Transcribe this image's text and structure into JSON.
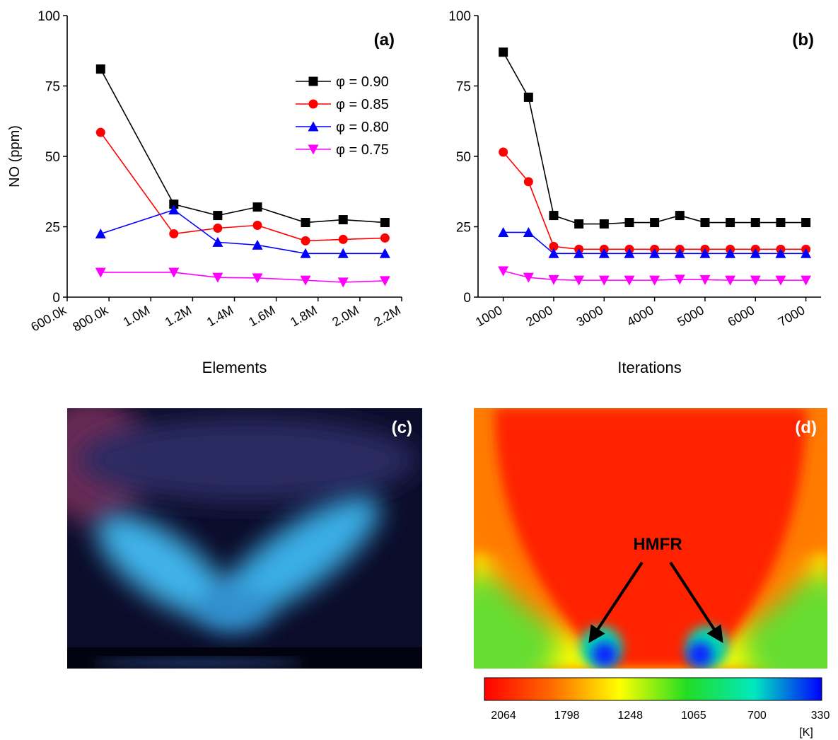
{
  "chart_data": [
    {
      "type": "line",
      "panel_label": "(a)",
      "x_label": "Elements",
      "y_label": "NO (ppm)",
      "xlim": [
        600000,
        2200000
      ],
      "xticks": [
        {
          "value": 600000,
          "label": "600.0k"
        },
        {
          "value": 800000,
          "label": "800.0k"
        },
        {
          "value": 1000000,
          "label": "1.0M"
        },
        {
          "value": 1200000,
          "label": "1.2M"
        },
        {
          "value": 1400000,
          "label": "1.4M"
        },
        {
          "value": 1600000,
          "label": "1.6M"
        },
        {
          "value": 1800000,
          "label": "1.8M"
        },
        {
          "value": 2000000,
          "label": "2.0M"
        },
        {
          "value": 2200000,
          "label": "2.2M"
        }
      ],
      "ylim": [
        0,
        100
      ],
      "yticks": [
        0,
        25,
        50,
        75,
        100
      ],
      "legend": "upper right",
      "x": [
        760000,
        1110000,
        1320000,
        1510000,
        1740000,
        1920000,
        2120000
      ],
      "series": [
        {
          "name": "φ = 0.90",
          "color": "#000000",
          "marker": "square",
          "values": [
            81,
            33,
            29,
            32,
            26.5,
            27.5,
            26.5
          ]
        },
        {
          "name": "φ = 0.85",
          "color": "#ff0000",
          "marker": "circle",
          "values": [
            58.5,
            22.5,
            24.5,
            25.5,
            20,
            20.5,
            21
          ]
        },
        {
          "name": "φ = 0.80",
          "color": "#0000ff",
          "marker": "triangle-up",
          "values": [
            22.5,
            31,
            19.5,
            18.5,
            15.5,
            15.5,
            15.5
          ]
        },
        {
          "name": "φ = 0.75",
          "color": "#ff00ff",
          "marker": "triangle-down",
          "values": [
            8.8,
            8.8,
            7,
            6.8,
            6,
            5.3,
            5.8
          ]
        }
      ]
    },
    {
      "type": "line",
      "panel_label": "(b)",
      "x_label": "Iterations",
      "xlim": [
        500,
        7300
      ],
      "xticks": [
        1000,
        2000,
        3000,
        4000,
        5000,
        6000,
        7000
      ],
      "ylim": [
        0,
        100
      ],
      "yticks": [
        0,
        25,
        50,
        75,
        100
      ],
      "x": [
        1000,
        1500,
        2000,
        2500,
        3000,
        3500,
        4000,
        4500,
        5000,
        5500,
        6000,
        6500,
        7000
      ],
      "series": [
        {
          "name": "φ = 0.90",
          "color": "#000000",
          "marker": "square",
          "values": [
            87,
            71,
            29,
            26,
            26,
            26.5,
            26.5,
            29,
            26.5,
            26.5,
            26.5,
            26.5,
            26.5
          ]
        },
        {
          "name": "φ = 0.85",
          "color": "#ff0000",
          "marker": "circle",
          "values": [
            51.5,
            41,
            18,
            17,
            17,
            17,
            17,
            17,
            17,
            17,
            17,
            17,
            17
          ]
        },
        {
          "name": "φ = 0.80",
          "color": "#0000ff",
          "marker": "triangle-up",
          "values": [
            23,
            23,
            15.5,
            15.5,
            15.5,
            15.5,
            15.5,
            15.5,
            15.5,
            15.5,
            15.5,
            15.5,
            15.5
          ]
        },
        {
          "name": "φ = 0.75",
          "color": "#ff00ff",
          "marker": "triangle-down",
          "values": [
            9.3,
            7,
            6.2,
            6,
            6,
            6,
            6,
            6.3,
            6.2,
            6,
            6,
            6,
            6
          ]
        }
      ]
    }
  ],
  "panels": {
    "c": {
      "label": "(c)"
    },
    "d": {
      "label": "(d)",
      "annotation": "HMFR",
      "colorbar": {
        "labels": [
          "2064",
          "1798",
          "1248",
          "1065",
          "700",
          "330"
        ],
        "unit": "[K]"
      }
    }
  }
}
